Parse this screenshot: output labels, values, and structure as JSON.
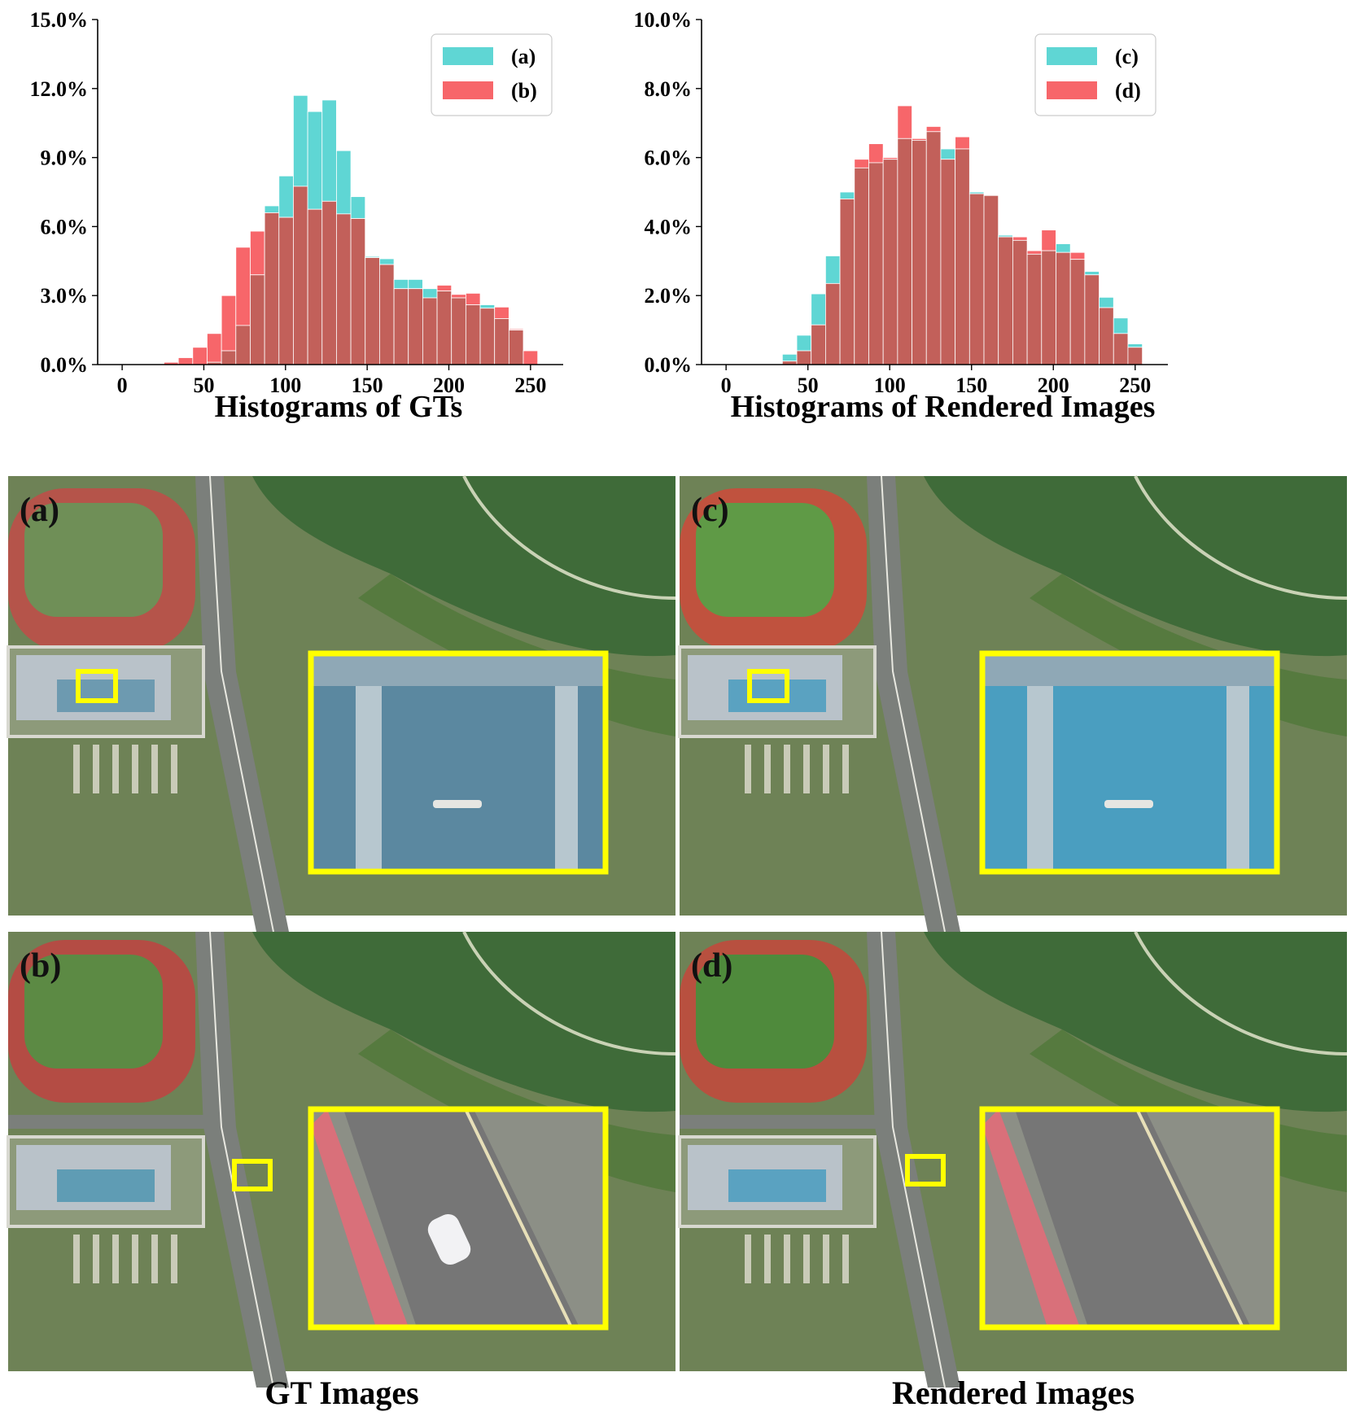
{
  "chart_data": [
    {
      "type": "bar",
      "title": "Histograms of GTs",
      "xlabel": "",
      "ylabel": "",
      "xlim": [
        -15,
        270
      ],
      "ylim": [
        0,
        15
      ],
      "x_ticks": [
        "0",
        "50",
        "100",
        "150",
        "200",
        "250"
      ],
      "y_ticks": [
        "0.0%",
        "3.0%",
        "6.0%",
        "9.0%",
        "12.0%",
        "15.0%"
      ],
      "legend_position": "top-right",
      "bin_width": 8.8,
      "bin_starts": [
        25.6,
        34.4,
        43.2,
        52.0,
        60.8,
        69.6,
        78.4,
        87.2,
        96.0,
        104.8,
        113.6,
        122.4,
        131.2,
        140.0,
        148.8,
        157.6,
        166.4,
        175.2,
        184.0,
        192.8,
        201.6,
        210.4,
        219.2,
        228.0,
        236.8,
        245.6
      ],
      "series": [
        {
          "name": "(a)",
          "color": "#5fd6d4",
          "values": [
            0.0,
            0.0,
            0.0,
            0.1,
            0.6,
            1.7,
            3.9,
            6.9,
            8.2,
            11.7,
            11.0,
            11.5,
            9.3,
            7.3,
            4.7,
            4.6,
            3.7,
            3.7,
            3.3,
            3.2,
            2.9,
            2.6,
            2.6,
            2.0,
            1.5,
            0.0
          ]
        },
        {
          "name": "(b)",
          "color": "#f7666a",
          "values": [
            0.1,
            0.3,
            0.75,
            1.35,
            3.0,
            5.1,
            5.8,
            6.6,
            6.4,
            7.75,
            6.75,
            7.1,
            6.55,
            6.35,
            4.65,
            4.35,
            3.3,
            3.3,
            2.9,
            3.45,
            3.05,
            3.1,
            2.45,
            2.5,
            1.55,
            0.6
          ]
        }
      ]
    },
    {
      "type": "bar",
      "title": "Histograms of Rendered Images",
      "xlabel": "",
      "ylabel": "",
      "xlim": [
        -15,
        270
      ],
      "ylim": [
        0,
        10
      ],
      "x_ticks": [
        "0",
        "50",
        "100",
        "150",
        "200",
        "250"
      ],
      "y_ticks": [
        "0.0%",
        "2.0%",
        "4.0%",
        "6.0%",
        "8.0%",
        "10.0%"
      ],
      "legend_position": "top-right",
      "bin_width": 8.8,
      "bin_starts": [
        25.6,
        34.4,
        43.2,
        52.0,
        60.8,
        69.6,
        78.4,
        87.2,
        96.0,
        104.8,
        113.6,
        122.4,
        131.2,
        140.0,
        148.8,
        157.6,
        166.4,
        175.2,
        184.0,
        192.8,
        201.6,
        210.4,
        219.2,
        228.0,
        236.8,
        245.6
      ],
      "series": [
        {
          "name": "(c)",
          "color": "#5fd6d4",
          "values": [
            0.0,
            0.3,
            0.85,
            2.05,
            3.15,
            5.0,
            5.7,
            5.85,
            5.95,
            6.55,
            6.5,
            6.75,
            6.25,
            6.25,
            5.0,
            4.9,
            3.75,
            3.6,
            3.2,
            3.3,
            3.5,
            3.05,
            2.7,
            1.95,
            1.35,
            0.6
          ]
        },
        {
          "name": "(d)",
          "color": "#f7666a",
          "values": [
            0.0,
            0.1,
            0.4,
            1.15,
            2.35,
            4.8,
            5.95,
            6.4,
            6.0,
            7.5,
            6.55,
            6.9,
            5.95,
            6.6,
            4.95,
            4.9,
            3.7,
            3.7,
            3.3,
            3.9,
            3.25,
            3.25,
            2.6,
            1.65,
            0.9,
            0.5
          ]
        }
      ]
    }
  ],
  "panels": {
    "a_label": "(a)",
    "b_label": "(b)",
    "c_label": "(c)",
    "d_label": "(d)"
  },
  "captions": {
    "gt": "GT Images",
    "rendered": "Rendered Images"
  },
  "colors": {
    "overlap": "#c2605a",
    "cyan": "#5fd6d4",
    "red": "#f7666a",
    "highlight": "#ffff00"
  }
}
